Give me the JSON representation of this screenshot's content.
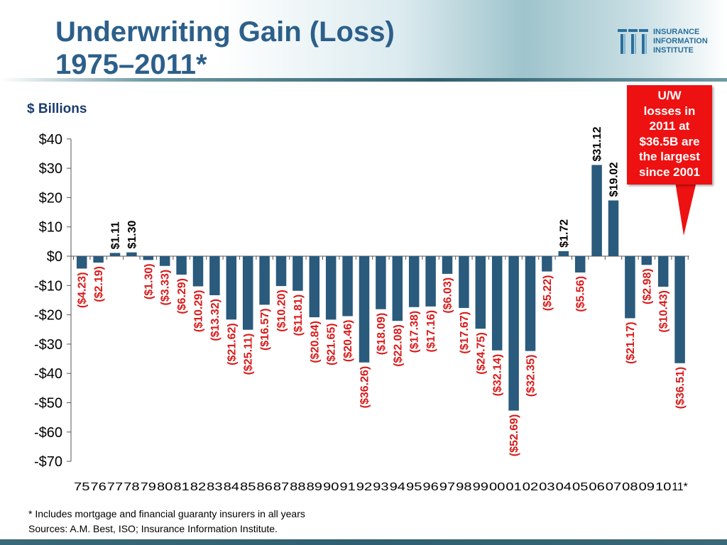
{
  "header": {
    "title_line1": "Underwriting Gain (Loss)",
    "title_line2": "1975–2011*"
  },
  "logo": {
    "line1": "INSURANCE",
    "line2": "INFORMATION",
    "line3": "INSTITUTE"
  },
  "callout": {
    "lines": [
      "U/W",
      "losses in",
      "2011 at",
      "$36.5B are",
      "the largest",
      "since 2001"
    ]
  },
  "footnote": {
    "line1": "* Includes mortgage and financial guaranty insurers in all years",
    "line2": "Sources: A.M. Best, ISO; Insurance Information Institute."
  },
  "colors": {
    "bar": "#2a5a7c",
    "positive_label": "#000000",
    "negative_label": "#d91a1a",
    "title": "#2c5f8a",
    "callout": "#ee1111"
  },
  "chart_data": {
    "type": "bar",
    "title": "Underwriting Gain (Loss) 1975–2011*",
    "ylabel": "$ Billions",
    "xlabel": "",
    "ylim": [
      -70,
      40
    ],
    "yticks": [
      40,
      30,
      20,
      10,
      0,
      -10,
      -20,
      -30,
      -40,
      -50,
      -60,
      -70
    ],
    "ytick_labels": [
      "$40",
      "$30",
      "$20",
      "$10",
      "$0",
      "-$10",
      "-$20",
      "-$30",
      "-$40",
      "-$50",
      "-$60",
      "-$70"
    ],
    "grid": false,
    "categories": [
      "75",
      "76",
      "77",
      "78",
      "79",
      "80",
      "81",
      "82",
      "83",
      "84",
      "85",
      "86",
      "87",
      "88",
      "89",
      "90",
      "91",
      "92",
      "93",
      "94",
      "95",
      "96",
      "97",
      "98",
      "99",
      "00",
      "01",
      "02",
      "03",
      "04",
      "05",
      "06",
      "07",
      "08",
      "09",
      "10",
      "11*"
    ],
    "values": [
      -4.23,
      -2.19,
      1.11,
      1.3,
      -1.3,
      -3.33,
      -6.29,
      -10.29,
      -13.32,
      -21.62,
      -25.11,
      -16.57,
      -10.2,
      -11.81,
      -20.84,
      -21.65,
      -20.46,
      -36.26,
      -18.09,
      -22.08,
      -17.38,
      -17.16,
      -6.03,
      -17.67,
      -24.75,
      -32.14,
      -52.69,
      -32.35,
      -5.22,
      1.72,
      -5.56,
      31.12,
      19.02,
      -21.17,
      -2.98,
      -10.43,
      -36.51
    ],
    "data_labels": [
      "($4.23)",
      "($2.19)",
      "$1.11",
      "$1.30",
      "($1.30)",
      "($3.33)",
      "($6.29)",
      "($10.29)",
      "($13.32)",
      "($21.62)",
      "($25.11)",
      "($16.57)",
      "($10.20)",
      "($11.81)",
      "($20.84)",
      "($21.65)",
      "($20.46)",
      "($36.26)",
      "($18.09)",
      "($22.08)",
      "($17.38)",
      "($17.16)",
      "($6.03)",
      "($17.67)",
      "($24.75)",
      "($32.14)",
      "($52.69)",
      "($32.35)",
      "($5.22)",
      "$1.72",
      "($5.56)",
      "$31.12",
      "$19.02",
      "($21.17)",
      "($2.98)",
      "($10.43)",
      "($36.51)"
    ]
  }
}
